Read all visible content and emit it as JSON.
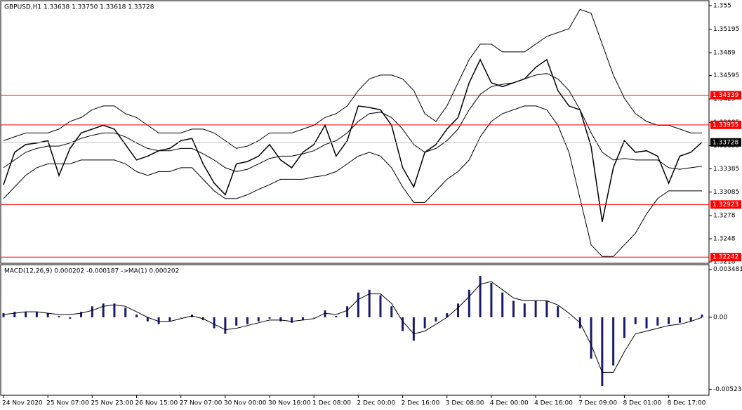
{
  "chart_data": [
    {
      "type": "line",
      "title": "GBPUSD,H1  1.33638 1.33750 1.33618 1.33728",
      "categories": [
        "24 Nov 2020",
        null,
        null,
        null,
        "25 Nov 07:00",
        null,
        null,
        null,
        "25 Nov 23:00",
        null,
        null,
        null,
        "26 Nov 15:00",
        null,
        null,
        null,
        "27 Nov 07:00",
        null,
        null,
        null,
        "30 Nov 00:00",
        null,
        null,
        null,
        "30 Nov 16:00",
        null,
        null,
        null,
        "1 Dec 08:00",
        null,
        null,
        null,
        "2 Dec 00:00",
        null,
        null,
        null,
        "2 Dec 16:00",
        null,
        null,
        null,
        "3 Dec 08:00",
        null,
        null,
        null,
        "4 Dec 00:00",
        null,
        null,
        null,
        "4 Dec 16:00",
        null,
        null,
        null,
        "7 Dec 09:00",
        null,
        null,
        null,
        "8 Dec 01:00",
        null,
        null,
        null,
        "8 Dec 17:00",
        null,
        null,
        null
      ],
      "series": [
        {
          "color": "#000000",
          "values": [
            1.3318,
            1.336,
            1.337,
            1.3372,
            1.3375,
            1.333,
            1.3365,
            1.3385,
            1.339,
            1.3395,
            1.339,
            1.337,
            1.335,
            1.3355,
            1.3362,
            1.3365,
            1.3375,
            1.3378,
            1.3345,
            1.332,
            1.3305,
            1.3345,
            1.3348,
            1.3355,
            1.337,
            1.335,
            1.334,
            1.336,
            1.337,
            1.3395,
            1.3355,
            1.3375,
            1.342,
            1.3418,
            1.3415,
            1.3395,
            1.334,
            1.3315,
            1.336,
            1.337,
            1.339,
            1.3405,
            1.345,
            1.348,
            1.345,
            1.3445,
            1.345,
            1.3455,
            1.347,
            1.348,
            1.344,
            1.342,
            1.3415,
            1.3367,
            1.327,
            1.334,
            1.3375,
            1.336,
            1.3362,
            1.3355,
            1.332,
            1.3355,
            1.336,
            1.3373
          ]
        },
        {
          "color": "#000000",
          "values": [
            1.3375,
            1.338,
            1.3385,
            1.3385,
            1.3385,
            1.339,
            1.34,
            1.3405,
            1.3415,
            1.342,
            1.342,
            1.341,
            1.3405,
            1.3395,
            1.3385,
            1.3385,
            1.3385,
            1.339,
            1.339,
            1.3385,
            1.3375,
            1.3365,
            1.3368,
            1.3375,
            1.3385,
            1.3385,
            1.3385,
            1.339,
            1.3395,
            1.3405,
            1.341,
            1.342,
            1.344,
            1.3455,
            1.346,
            1.346,
            1.3455,
            1.344,
            1.341,
            1.34,
            1.342,
            1.345,
            1.348,
            1.35,
            1.35,
            1.349,
            1.349,
            1.349,
            1.35,
            1.351,
            1.3515,
            1.352,
            1.3545,
            1.354,
            1.35,
            1.346,
            1.343,
            1.341,
            1.34,
            1.3395,
            1.3395,
            1.339,
            1.3385,
            1.3385
          ]
        },
        {
          "color": "#000000",
          "values": [
            1.334,
            1.335,
            1.336,
            1.3365,
            1.3368,
            1.3368,
            1.3372,
            1.3378,
            1.3382,
            1.3385,
            1.3385,
            1.338,
            1.3372,
            1.3365,
            1.3362,
            1.3362,
            1.3365,
            1.3365,
            1.3358,
            1.335,
            1.334,
            1.3335,
            1.3338,
            1.3345,
            1.3352,
            1.3355,
            1.3355,
            1.3358,
            1.3362,
            1.337,
            1.3375,
            1.3385,
            1.34,
            1.341,
            1.3412,
            1.3405,
            1.339,
            1.337,
            1.336,
            1.3365,
            1.3375,
            1.339,
            1.3415,
            1.3435,
            1.3445,
            1.3448,
            1.345,
            1.3455,
            1.346,
            1.3462,
            1.3455,
            1.344,
            1.3415,
            1.3385,
            1.336,
            1.335,
            1.3352,
            1.335,
            1.335,
            1.335,
            1.334,
            1.3338,
            1.334,
            1.3342
          ]
        },
        {
          "color": "#000000",
          "values": [
            1.33,
            1.3315,
            1.333,
            1.334,
            1.3345,
            1.3345,
            1.3345,
            1.335,
            1.335,
            1.335,
            1.335,
            1.3345,
            1.3335,
            1.333,
            1.3335,
            1.3335,
            1.334,
            1.334,
            1.3325,
            1.331,
            1.33,
            1.33,
            1.3305,
            1.3312,
            1.3318,
            1.3325,
            1.3325,
            1.3325,
            1.3328,
            1.333,
            1.3335,
            1.3345,
            1.3355,
            1.336,
            1.3355,
            1.334,
            1.3315,
            1.3295,
            1.3295,
            1.331,
            1.3325,
            1.3335,
            1.335,
            1.338,
            1.34,
            1.341,
            1.3415,
            1.342,
            1.342,
            1.3415,
            1.3395,
            1.336,
            1.33,
            1.324,
            1.3225,
            1.3225,
            1.324,
            1.3255,
            1.328,
            1.33,
            1.331,
            1.331,
            1.331,
            1.331
          ]
        }
      ],
      "ylim": [
        1.32162,
        1.35545
      ],
      "yticks": [
        1.355,
        1.35195,
        1.3489,
        1.34595,
        1.3429,
        1.33985,
        1.33685,
        1.33385,
        1.33085,
        1.3278,
        1.3248,
        1.3218
      ],
      "hlines": [
        1.34339,
        1.33955,
        1.32923,
        1.32242
      ],
      "hline_color": "#ff0000",
      "last_price": 1.33728
    },
    {
      "type": "bar",
      "title": "MACD(12,26,9) 0.000202 -0.000187  ->MA(1) 0.000202",
      "series": [
        {
          "color": "#1a1a6e",
          "values": [
            0.0003,
            0.0004,
            0.0004,
            0.0004,
            0.0003,
            0.0001,
            -0.0001,
            0.0004,
            0.0008,
            0.001,
            0.001,
            0.0007,
            0.0002,
            -0.0003,
            -0.0005,
            -0.0003,
            0.0,
            0.0002,
            -0.0002,
            -0.0008,
            -0.0012,
            -0.0006,
            -0.0005,
            -0.0003,
            -0.0001,
            -0.0003,
            -0.0004,
            -0.0002,
            0.0,
            0.0005,
            0.0001,
            0.0008,
            0.0018,
            0.002,
            0.0016,
            0.0008,
            -0.001,
            -0.0017,
            -0.0008,
            -0.0003,
            0.0003,
            0.001,
            0.002,
            0.003,
            0.0025,
            0.0018,
            0.0012,
            0.001,
            0.0012,
            0.0012,
            0.0008,
            0.0,
            -0.0008,
            -0.003,
            -0.005,
            -0.0035,
            -0.0015,
            -0.0005,
            -0.0008,
            -0.0006,
            -0.0005,
            -0.0004,
            -0.0003,
            0.0002
          ]
        },
        {
          "color": "#000000",
          "values": [
            0.0002,
            0.0003,
            0.0004,
            0.0004,
            0.0003,
            0.0002,
            0.0002,
            0.0003,
            0.0005,
            0.0008,
            0.0009,
            0.0008,
            0.0004,
            0.0,
            -0.0003,
            -0.0003,
            -0.0001,
            0.0001,
            -0.0001,
            -0.0005,
            -0.0009,
            -0.0008,
            -0.0006,
            -0.0004,
            -0.0002,
            -0.0002,
            -0.0003,
            -0.0002,
            -0.0001,
            0.0003,
            0.0002,
            0.0005,
            0.0013,
            0.0017,
            0.0017,
            0.001,
            -0.0003,
            -0.0012,
            -0.001,
            -0.0005,
            0.0,
            0.0007,
            0.0015,
            0.0024,
            0.0026,
            0.002,
            0.0014,
            0.0012,
            0.0012,
            0.0012,
            0.0009,
            0.0003,
            -0.0004,
            -0.002,
            -0.004,
            -0.004,
            -0.0025,
            -0.0012,
            -0.001,
            -0.0008,
            -0.0006,
            -0.0005,
            -0.0003,
            0.0
          ]
        }
      ],
      "ylim": [
        -0.00556,
        0.00372
      ],
      "yticks": [
        0.003481,
        {
          "value": 0,
          "label": "0.00"
        },
        -0.005231
      ]
    }
  ]
}
